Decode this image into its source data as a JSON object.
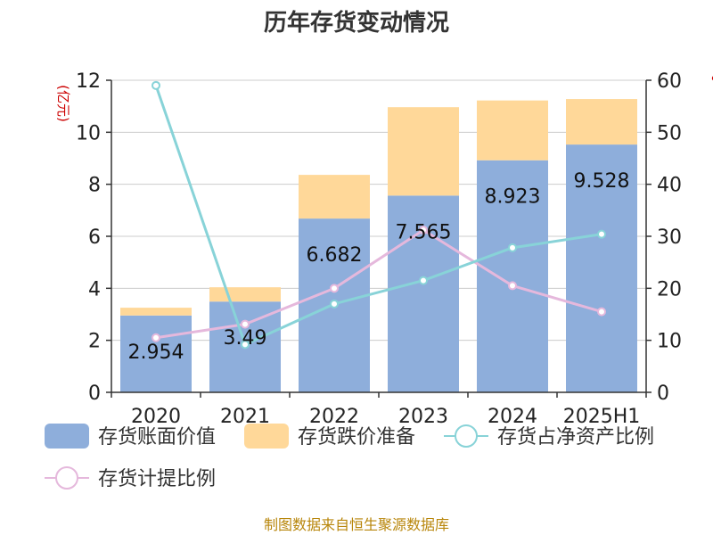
{
  "colors": {
    "book_value": "#8eaedb",
    "provision": "#ffd899",
    "ratio_net_assets": "#88d3d8",
    "provision_ratio": "#e5b8dc",
    "title": "#333333",
    "unit": "#cc0000",
    "source": "#b8860b"
  },
  "chart_data": {
    "type": "bar",
    "title": "历年存货变动情况",
    "ylabel": "(亿元)",
    "y2label": "%",
    "categories": [
      "2020",
      "2021",
      "2022",
      "2023",
      "2024",
      "2025H1"
    ],
    "ylim": [
      0,
      12
    ],
    "y2lim": [
      0,
      60
    ],
    "yticks": [
      "0",
      "2",
      "4",
      "6",
      "8",
      "10",
      "12"
    ],
    "y2ticks": [
      "0",
      "10",
      "20",
      "30",
      "40",
      "50",
      "60"
    ],
    "grid": true,
    "legend_position": "bottom",
    "stacked": true,
    "series": [
      {
        "name": "存货账面价值",
        "type": "bar",
        "axis": "left",
        "values": [
          2.954,
          3.49,
          6.682,
          7.565,
          8.923,
          9.528
        ],
        "labels": [
          "2.954",
          "3.49",
          "6.682",
          "7.565",
          "8.923",
          "9.528"
        ]
      },
      {
        "name": "存货跌价准备",
        "type": "bar",
        "axis": "left",
        "values": [
          0.3,
          0.55,
          1.68,
          3.4,
          2.3,
          1.75
        ]
      },
      {
        "name": "存货占净资产比例",
        "type": "line",
        "axis": "right",
        "values": [
          59.0,
          9.2,
          17.0,
          21.5,
          27.8,
          30.4
        ]
      },
      {
        "name": "存货计提比例",
        "type": "line",
        "axis": "right",
        "values": [
          10.5,
          13.1,
          20.0,
          31.2,
          20.5,
          15.5
        ]
      }
    ]
  },
  "source": "制图数据来自恒生聚源数据库"
}
